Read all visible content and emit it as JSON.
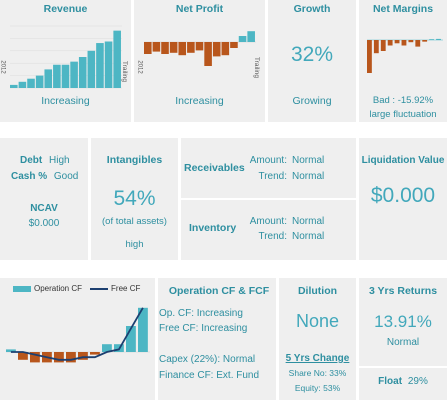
{
  "row1": {
    "revenue": {
      "title": "Revenue",
      "year_label": "2012",
      "end_label": "Trailing",
      "trend": "Increasing",
      "values": [
        2,
        4,
        6,
        8,
        12,
        15,
        15,
        17,
        20,
        24,
        29,
        30,
        37
      ]
    },
    "net_profit": {
      "title": "Net Profit",
      "year_label": "2012",
      "end_label": "Trailing",
      "trend": "Increasing",
      "values": [
        -10,
        -8,
        -10,
        -9,
        -11,
        -9,
        -7,
        -20,
        -12,
        -11,
        -5,
        5,
        9
      ]
    },
    "growth": {
      "title": "Growth",
      "value": "32%",
      "status": "Growing"
    },
    "net_margins": {
      "title": "Net Margins",
      "status_line1": "Bad : -15.92%",
      "status_line2": "large fluctuation",
      "values": [
        -30,
        -12,
        -10,
        -5,
        -3,
        -5,
        -2,
        -6,
        -1.5,
        0,
        1
      ]
    }
  },
  "row2": {
    "debt": {
      "debt_label": "Debt",
      "debt_value": "High",
      "cash_label": "Cash %",
      "cash_value": "Good",
      "ncav_label": "NCAV",
      "ncav_value": "$0.000"
    },
    "intangibles": {
      "title": "Intangibles",
      "value": "54%",
      "note": "(of total assets)",
      "level": "high"
    },
    "receivables": {
      "title": "Receivables",
      "amount_label": "Amount:",
      "amount_value": "Normal",
      "trend_label": "Trend:",
      "trend_value": "Normal"
    },
    "inventory": {
      "title": "Inventory",
      "amount_label": "Amount:",
      "amount_value": "Normal",
      "trend_label": "Trend:",
      "trend_value": "Normal"
    },
    "liquidation": {
      "title": "Liquidation Value",
      "value": "$0.000"
    }
  },
  "row3": {
    "cashflow_chart": {
      "legend_operation": "Operation CF",
      "legend_free": "Free CF",
      "operation_values": [
        1,
        -3,
        -4,
        -4,
        -4,
        -4,
        -3,
        -1,
        3,
        3,
        10,
        17
      ],
      "free_values": [
        0,
        0,
        -1,
        -2,
        -3,
        -3,
        -2,
        -2,
        0,
        1,
        9,
        17
      ]
    },
    "cashflow_text": {
      "title": "Operation CF & FCF",
      "op_cf": "Op. CF: Increasing",
      "free_cf": "Free CF: Increasing",
      "capex": "Capex (22%): Normal",
      "finance": "Finance CF: Ext. Fund"
    },
    "dilution": {
      "title": "Dilution",
      "value": "None",
      "five_yrs": "5 Yrs Change",
      "share_no": "Share No: 33%",
      "equity": "Equity: 53%"
    },
    "returns": {
      "title": "3 Yrs Returns",
      "value": "13.91%",
      "status": "Normal"
    },
    "float": {
      "label": "Float",
      "value": "29%"
    }
  },
  "colors": {
    "teal_bar": "#4db6c4",
    "orange_bar": "#b8561c",
    "navy_line": "#1c3f70",
    "title_teal": "#2e8fa0",
    "panel_bg": "#efefef"
  }
}
